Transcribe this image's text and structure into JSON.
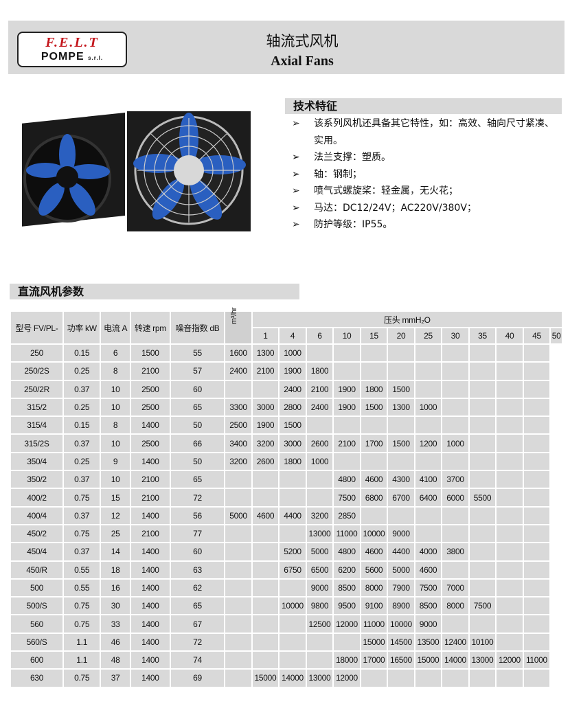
{
  "header": {
    "logo_brand": "F.E.L.T",
    "logo_sub": "POMPE",
    "logo_suffix": "s.r.l.",
    "title_cn": "轴流式风机",
    "title_en": "Axial Fans"
  },
  "features": {
    "heading": "技术特征",
    "bullet_icon": "arrow-right-icon",
    "items": [
      "该系列风机还具备其它特性，如：高效、轴向尺寸紧凑、实用。",
      "法兰支撑：塑质。",
      "轴：钢制；",
      "喷气式螺旋桨：轻金属，无火花；",
      "马达：DC12/24V；AC220V/380V；",
      "防护等级：IP55。"
    ]
  },
  "section_title": "直流风机参数",
  "table": {
    "headers": [
      "型号 FV/PL-",
      "功率 kW",
      "电流 A",
      "转速 rpm",
      "噪音指数 dB"
    ],
    "pressure_header": "压头 mmH₂O",
    "flow_unit": "m³/hr",
    "pressures": [
      "1",
      "4",
      "6",
      "10",
      "15",
      "20",
      "25",
      "30",
      "35",
      "40",
      "45",
      "50"
    ],
    "rows": [
      {
        "cells": [
          "250",
          "0.15",
          "6",
          "1500",
          "55"
        ],
        "flow": [
          "1600",
          "1300",
          "1000",
          "",
          "",
          "",
          "",
          "",
          "",
          "",
          "",
          ""
        ]
      },
      {
        "cells": [
          "250/2S",
          "0.25",
          "8",
          "2100",
          "57"
        ],
        "flow": [
          "2400",
          "2100",
          "1900",
          "1800",
          "",
          "",
          "",
          "",
          "",
          "",
          "",
          ""
        ]
      },
      {
        "cells": [
          "250/2R",
          "0.37",
          "10",
          "2500",
          "60"
        ],
        "flow": [
          "",
          "",
          "2400",
          "2100",
          "1900",
          "1800",
          "1500",
          "",
          "",
          "",
          "",
          ""
        ]
      },
      {
        "cells": [
          "315/2",
          "0.25",
          "10",
          "2500",
          "65"
        ],
        "flow": [
          "3300",
          "3000",
          "2800",
          "2400",
          "1900",
          "1500",
          "1300",
          "1000",
          "",
          "",
          "",
          ""
        ]
      },
      {
        "cells": [
          "315/4",
          "0.15",
          "8",
          "1400",
          "50"
        ],
        "flow": [
          "2500",
          "1900",
          "1500",
          "",
          "",
          "",
          "",
          "",
          "",
          "",
          "",
          ""
        ]
      },
      {
        "cells": [
          "315/2S",
          "0.37",
          "10",
          "2500",
          "66"
        ],
        "flow": [
          "3400",
          "3200",
          "3000",
          "2600",
          "2100",
          "1700",
          "1500",
          "1200",
          "1000",
          "",
          "",
          ""
        ]
      },
      {
        "cells": [
          "350/4",
          "0.25",
          "9",
          "1400",
          "50"
        ],
        "flow": [
          "3200",
          "2600",
          "1800",
          "1000",
          "",
          "",
          "",
          "",
          "",
          "",
          "",
          ""
        ]
      },
      {
        "cells": [
          "350/2",
          "0.37",
          "10",
          "2100",
          "65"
        ],
        "flow": [
          "",
          "",
          "",
          "",
          "4800",
          "4600",
          "4300",
          "4100",
          "3700",
          "",
          "",
          ""
        ]
      },
      {
        "cells": [
          "400/2",
          "0.75",
          "15",
          "2100",
          "72"
        ],
        "flow": [
          "",
          "",
          "",
          "",
          "7500",
          "6800",
          "6700",
          "6400",
          "6000",
          "5500",
          "",
          ""
        ]
      },
      {
        "cells": [
          "400/4",
          "0.37",
          "12",
          "1400",
          "56"
        ],
        "flow": [
          "5000",
          "4600",
          "4400",
          "3200",
          "2850",
          "",
          "",
          "",
          "",
          "",
          "",
          ""
        ]
      },
      {
        "cells": [
          "450/2",
          "0.75",
          "25",
          "2100",
          "77"
        ],
        "flow": [
          "",
          "",
          "",
          "13000",
          "11000",
          "10000",
          "9000",
          "",
          "",
          "",
          "",
          ""
        ]
      },
      {
        "cells": [
          "450/4",
          "0.37",
          "14",
          "1400",
          "60"
        ],
        "flow": [
          "",
          "",
          "5200",
          "5000",
          "4800",
          "4600",
          "4400",
          "4000",
          "3800",
          "",
          "",
          ""
        ]
      },
      {
        "cells": [
          "450/R",
          "0.55",
          "18",
          "1400",
          "63"
        ],
        "flow": [
          "",
          "",
          "6750",
          "6500",
          "6200",
          "5600",
          "5000",
          "4600",
          "",
          "",
          "",
          ""
        ]
      },
      {
        "cells": [
          "500",
          "0.55",
          "16",
          "1400",
          "62"
        ],
        "flow": [
          "",
          "",
          "",
          "9000",
          "8500",
          "8000",
          "7900",
          "7500",
          "7000",
          "",
          "",
          ""
        ]
      },
      {
        "cells": [
          "500/S",
          "0.75",
          "30",
          "1400",
          "65"
        ],
        "flow": [
          "",
          "",
          "10000",
          "9800",
          "9500",
          "9100",
          "8900",
          "8500",
          "8000",
          "7500",
          "",
          ""
        ]
      },
      {
        "cells": [
          "560",
          "0.75",
          "33",
          "1400",
          "67"
        ],
        "flow": [
          "",
          "",
          "",
          "12500",
          "12000",
          "11000",
          "10000",
          "9000",
          "",
          "",
          "",
          ""
        ]
      },
      {
        "cells": [
          "560/S",
          "1.1",
          "46",
          "1400",
          "72"
        ],
        "flow": [
          "",
          "",
          "",
          "",
          "",
          "15000",
          "14500",
          "13500",
          "12400",
          "10100",
          "",
          ""
        ]
      },
      {
        "cells": [
          "600",
          "1.1",
          "48",
          "1400",
          "74"
        ],
        "flow": [
          "",
          "",
          "",
          "",
          "18000",
          "17000",
          "16500",
          "15000",
          "14000",
          "13000",
          "12000",
          "11000"
        ]
      },
      {
        "cells": [
          "630",
          "0.75",
          "37",
          "1400",
          "69"
        ],
        "flow": [
          "",
          "15000",
          "14000",
          "13000",
          "12000",
          "",
          "",
          "",
          "",
          "",
          "",
          ""
        ]
      }
    ]
  },
  "colors": {
    "panel": "#d9d9d9",
    "logo_red": "#c4161c",
    "blade_blue": "#2a5fc0"
  }
}
